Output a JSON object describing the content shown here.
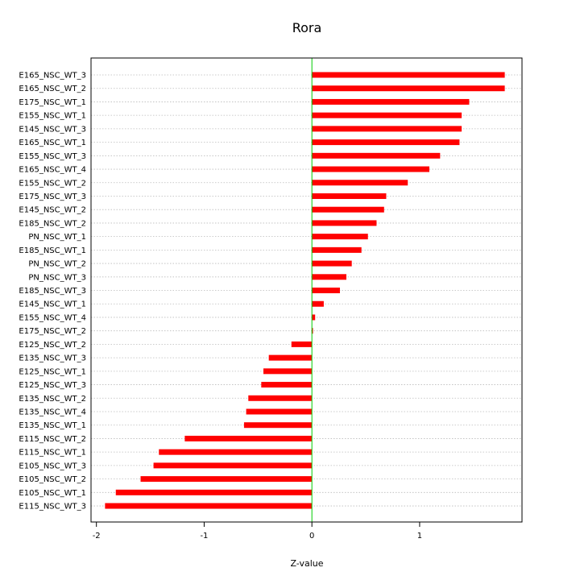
{
  "chart_data": {
    "type": "bar",
    "orientation": "horizontal",
    "title": "Rora",
    "xlabel": "Z-value",
    "ylabel": "",
    "xlim": [
      -2.05,
      1.95
    ],
    "xticks": [
      -2,
      -1,
      0,
      1
    ],
    "grid": "horizontal dotted",
    "bar_color": "#ff0000",
    "zero_line_color": "#00cc00",
    "categories": [
      "E165_NSC_WT_3",
      "E165_NSC_WT_2",
      "E175_NSC_WT_1",
      "E155_NSC_WT_1",
      "E145_NSC_WT_3",
      "E165_NSC_WT_1",
      "E155_NSC_WT_3",
      "E165_NSC_WT_4",
      "E155_NSC_WT_2",
      "E175_NSC_WT_3",
      "E145_NSC_WT_2",
      "E185_NSC_WT_2",
      "PN_NSC_WT_1",
      "E185_NSC_WT_1",
      "PN_NSC_WT_2",
      "PN_NSC_WT_3",
      "E185_NSC_WT_3",
      "E145_NSC_WT_1",
      "E155_NSC_WT_4",
      "E175_NSC_WT_2",
      "E125_NSC_WT_2",
      "E135_NSC_WT_3",
      "E125_NSC_WT_1",
      "E125_NSC_WT_3",
      "E135_NSC_WT_2",
      "E135_NSC_WT_4",
      "E135_NSC_WT_1",
      "E115_NSC_WT_2",
      "E115_NSC_WT_1",
      "E105_NSC_WT_3",
      "E105_NSC_WT_2",
      "E105_NSC_WT_1",
      "E115_NSC_WT_3"
    ],
    "values": [
      1.79,
      1.79,
      1.46,
      1.39,
      1.39,
      1.37,
      1.19,
      1.09,
      0.89,
      0.69,
      0.67,
      0.6,
      0.52,
      0.46,
      0.37,
      0.32,
      0.26,
      0.11,
      0.03,
      0.01,
      -0.19,
      -0.4,
      -0.45,
      -0.47,
      -0.59,
      -0.61,
      -0.63,
      -1.18,
      -1.42,
      -1.47,
      -1.59,
      -1.82,
      -1.92
    ]
  }
}
